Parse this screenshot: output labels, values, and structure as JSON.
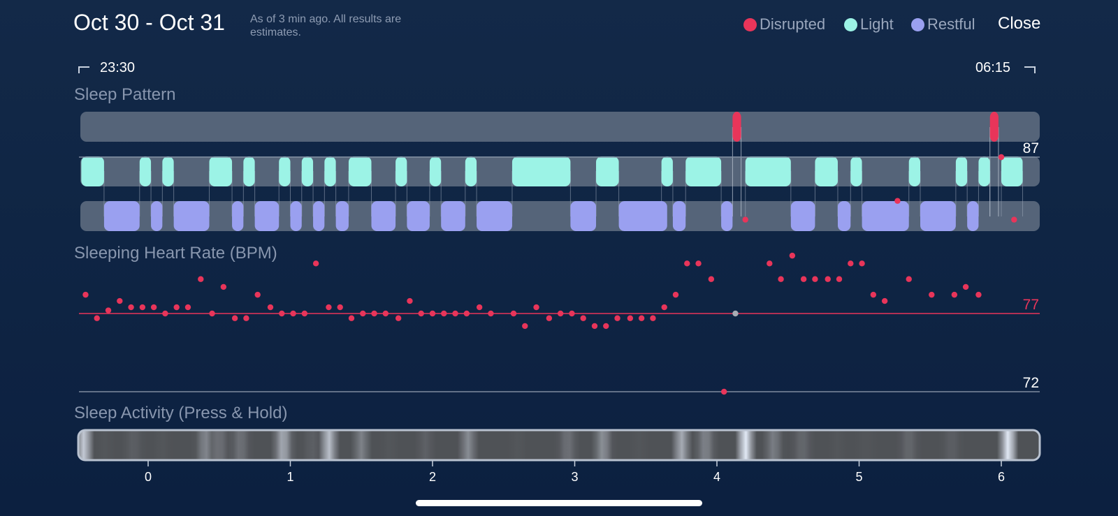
{
  "header": {
    "date_range": "Oct 30 - Oct 31",
    "status_note": "As of 3 min ago. All results are estimates.",
    "close_label": "Close"
  },
  "legend": [
    {
      "label": "Disrupted",
      "color": "#e8355a"
    },
    {
      "label": "Light",
      "color": "#9cf3e6"
    },
    {
      "label": "Restful",
      "color": "#9aa0f0"
    }
  ],
  "timeline": {
    "start_time": "23:30",
    "end_time": "06:15"
  },
  "sleep_pattern": {
    "title": "Sleep Pattern",
    "disrupted": [
      [
        4.11,
        4.17
      ],
      [
        5.92,
        5.98
      ]
    ],
    "light": [
      [
        -0.47,
        -0.31
      ],
      [
        -0.06,
        0.02
      ],
      [
        0.1,
        0.18
      ],
      [
        0.43,
        0.59
      ],
      [
        0.67,
        0.75
      ],
      [
        0.92,
        1.0
      ],
      [
        1.08,
        1.16
      ],
      [
        1.24,
        1.32
      ],
      [
        1.41,
        1.57
      ],
      [
        1.74,
        1.82
      ],
      [
        1.98,
        2.06
      ],
      [
        2.23,
        2.31
      ],
      [
        2.56,
        2.97
      ],
      [
        3.15,
        3.31
      ],
      [
        3.61,
        3.69
      ],
      [
        3.78,
        4.03
      ],
      [
        4.2,
        4.52
      ],
      [
        4.69,
        4.85
      ],
      [
        4.94,
        5.02
      ],
      [
        5.35,
        5.43
      ],
      [
        5.68,
        5.76
      ],
      [
        5.84,
        5.92
      ],
      [
        6.0,
        6.15
      ]
    ],
    "restful": [
      [
        -0.31,
        -0.06
      ],
      [
        0.02,
        0.1
      ],
      [
        0.18,
        0.43
      ],
      [
        0.59,
        0.67
      ],
      [
        0.75,
        0.92
      ],
      [
        1.0,
        1.08
      ],
      [
        1.16,
        1.24
      ],
      [
        1.32,
        1.41
      ],
      [
        1.57,
        1.74
      ],
      [
        1.82,
        1.98
      ],
      [
        2.06,
        2.23
      ],
      [
        2.31,
        2.56
      ],
      [
        2.97,
        3.15
      ],
      [
        3.31,
        3.65
      ],
      [
        3.69,
        3.78
      ],
      [
        4.03,
        4.11
      ],
      [
        4.52,
        4.69
      ],
      [
        4.85,
        4.94
      ],
      [
        5.02,
        5.35
      ],
      [
        5.43,
        5.68
      ],
      [
        5.76,
        5.84
      ]
    ]
  },
  "chart_data": {
    "type": "scatter",
    "title": "Sleeping Heart Rate (BPM)",
    "x_ticks": [
      0,
      1,
      2,
      3,
      4,
      5,
      6
    ],
    "reference_lines": {
      "max": 87,
      "average": 77,
      "min": 72
    },
    "series": [
      {
        "color": "#e8355a",
        "x": [
          -0.44,
          -0.36,
          -0.28,
          -0.2,
          -0.12,
          -0.04,
          0.04,
          0.12,
          0.2,
          0.28,
          0.37,
          0.45,
          0.53,
          0.61,
          0.69,
          0.77,
          0.86,
          0.94,
          1.02,
          1.1,
          1.18,
          1.27,
          1.35,
          1.43,
          1.51,
          1.59,
          1.67,
          1.76,
          1.84,
          1.92,
          2.0,
          2.08,
          2.16,
          2.24,
          2.33,
          2.41,
          2.57,
          2.65,
          2.73,
          2.82,
          2.9,
          2.98,
          3.06,
          3.14,
          3.22,
          3.3,
          3.39,
          3.47,
          3.55,
          3.63,
          3.71,
          3.79,
          3.87,
          3.96,
          4.05,
          4.2,
          4.37,
          4.45,
          4.53,
          4.61,
          4.69,
          4.78,
          4.86,
          4.94,
          5.02,
          5.1,
          5.18,
          5.27,
          5.35,
          5.51,
          5.67,
          5.75,
          5.84,
          6.0,
          6.09
        ],
        "y": [
          78.2,
          76.7,
          77.2,
          77.8,
          77.4,
          77.4,
          77.4,
          77.0,
          77.4,
          77.4,
          79.2,
          77.0,
          78.7,
          76.7,
          76.7,
          78.2,
          77.4,
          77.0,
          77.0,
          77.0,
          80.2,
          77.4,
          77.4,
          76.7,
          77.0,
          77.0,
          77.0,
          76.7,
          77.8,
          77.0,
          77.0,
          77.0,
          77.0,
          77.0,
          77.4,
          77.0,
          77.0,
          76.2,
          77.4,
          76.7,
          77.0,
          77.0,
          76.7,
          76.2,
          76.2,
          76.7,
          76.7,
          76.7,
          76.7,
          77.4,
          78.2,
          80.2,
          80.2,
          79.2,
          72.0,
          83.0,
          80.2,
          79.2,
          80.7,
          79.2,
          79.2,
          79.2,
          79.2,
          80.2,
          80.2,
          78.2,
          77.8,
          84.2,
          79.2,
          78.2,
          78.2,
          78.7,
          78.2,
          87.0,
          83.0
        ]
      },
      {
        "color": "#a8acb4",
        "x": [
          4.13
        ],
        "y": [
          77.0
        ]
      }
    ]
  },
  "sleep_activity": {
    "title": "Sleep Activity (Press & Hold)",
    "x_ticks": [
      0,
      1,
      2,
      3,
      4,
      5,
      6
    ],
    "intensity": [
      {
        "x": -0.45,
        "v": 0.85
      },
      {
        "x": -0.3,
        "v": 0.3
      },
      {
        "x": -0.1,
        "v": 0.35
      },
      {
        "x": 0.1,
        "v": 0.3
      },
      {
        "x": 0.4,
        "v": 0.55
      },
      {
        "x": 0.5,
        "v": 0.45
      },
      {
        "x": 0.65,
        "v": 0.45
      },
      {
        "x": 0.95,
        "v": 0.75
      },
      {
        "x": 1.15,
        "v": 0.35
      },
      {
        "x": 1.27,
        "v": 0.8
      },
      {
        "x": 1.5,
        "v": 0.5
      },
      {
        "x": 1.7,
        "v": 0.3
      },
      {
        "x": 1.95,
        "v": 0.35
      },
      {
        "x": 2.25,
        "v": 0.55
      },
      {
        "x": 2.6,
        "v": 0.3
      },
      {
        "x": 2.95,
        "v": 0.45
      },
      {
        "x": 3.2,
        "v": 0.6
      },
      {
        "x": 3.45,
        "v": 0.3
      },
      {
        "x": 3.75,
        "v": 0.7
      },
      {
        "x": 3.92,
        "v": 0.55
      },
      {
        "x": 4.2,
        "v": 1.0
      },
      {
        "x": 4.4,
        "v": 0.5
      },
      {
        "x": 4.6,
        "v": 0.4
      },
      {
        "x": 4.85,
        "v": 0.3
      },
      {
        "x": 5.05,
        "v": 0.3
      },
      {
        "x": 5.35,
        "v": 0.4
      },
      {
        "x": 5.65,
        "v": 0.35
      },
      {
        "x": 6.05,
        "v": 1.0
      }
    ]
  }
}
